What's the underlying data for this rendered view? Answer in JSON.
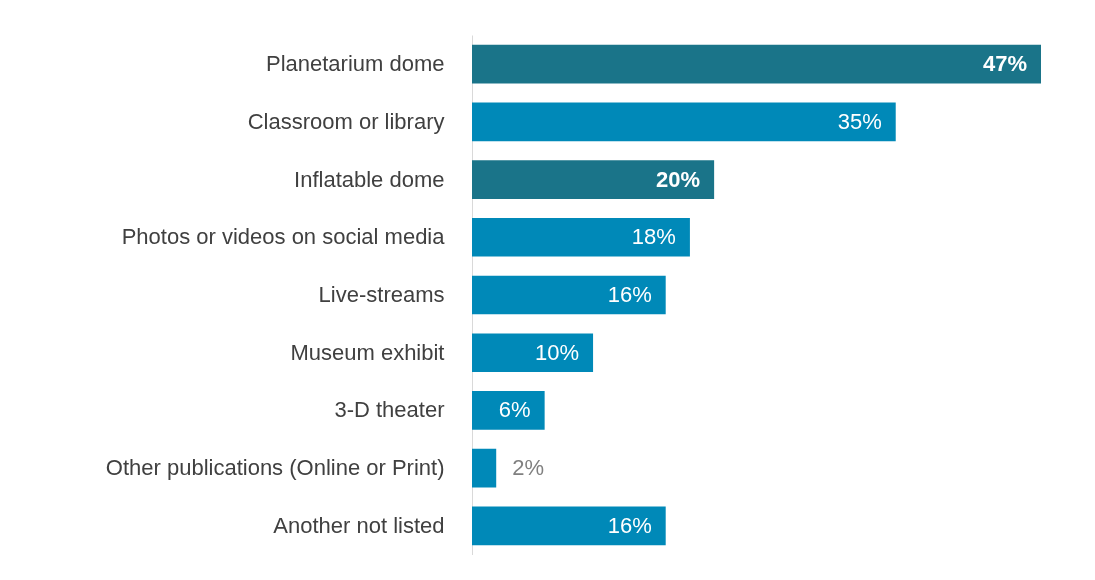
{
  "chart_data": {
    "type": "bar",
    "orientation": "horizontal",
    "value_labels": [
      "47%",
      "35%",
      "20%",
      "18%",
      "16%",
      "10%",
      "6%",
      "2%",
      "16%"
    ],
    "categories": [
      "Planetarium dome",
      "Classroom or library",
      "Inflatable dome",
      "Photos or videos on social media",
      "Live-streams",
      "Museum exhibit",
      "3-D theater",
      "Other publications (Online or Print)",
      "Another not listed"
    ],
    "values": [
      47,
      35,
      20,
      18,
      16,
      10,
      6,
      2,
      16
    ],
    "colors": [
      "#1a7489",
      "#0089b8",
      "#1a7489",
      "#0089b8",
      "#0089b8",
      "#0089b8",
      "#0089b8",
      "#0089b8",
      "#0089b8"
    ],
    "grid": false
  }
}
